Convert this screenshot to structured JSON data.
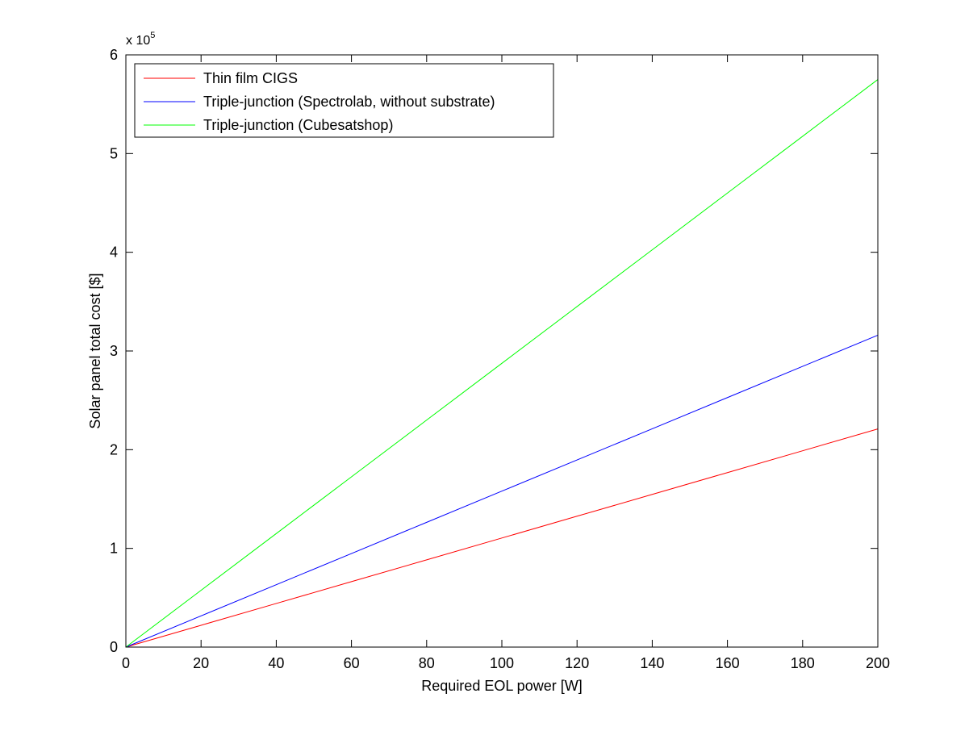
{
  "chart_data": {
    "type": "line",
    "title": "",
    "xlabel": "Required EOL power [W]",
    "ylabel": "Solar panel total cost [$]",
    "y_exponent_label": "x 10",
    "y_exponent_power": "5",
    "xlim": [
      0,
      200
    ],
    "ylim": [
      0,
      600000
    ],
    "x_ticks": [
      0,
      20,
      40,
      60,
      80,
      100,
      120,
      140,
      160,
      180,
      200
    ],
    "x_tick_labels": [
      "0",
      "20",
      "40",
      "60",
      "80",
      "100",
      "120",
      "140",
      "160",
      "180",
      "200"
    ],
    "y_ticks": [
      0,
      100000,
      200000,
      300000,
      400000,
      500000,
      600000
    ],
    "y_tick_labels": [
      "0",
      "1",
      "2",
      "3",
      "4",
      "5",
      "6"
    ],
    "grid": false,
    "legend_position": "top-left",
    "series": [
      {
        "name": "Thin film CIGS",
        "color": "#ff0000",
        "x": [
          0,
          20,
          40,
          60,
          80,
          100,
          120,
          140,
          160,
          180,
          200
        ],
        "values": [
          0,
          22100,
          44200,
          66300,
          88400,
          110500,
          132600,
          154700,
          176800,
          198900,
          221000
        ]
      },
      {
        "name": "Triple-junction (Spectrolab, without substrate)",
        "color": "#0000ff",
        "x": [
          0,
          20,
          40,
          60,
          80,
          100,
          120,
          140,
          160,
          180,
          200
        ],
        "values": [
          0,
          31600,
          63200,
          94800,
          126400,
          158000,
          189600,
          221200,
          252800,
          284400,
          316000
        ]
      },
      {
        "name": "Triple-junction (Cubesatshop)",
        "color": "#00ff00",
        "x": [
          0,
          20,
          40,
          60,
          80,
          100,
          120,
          140,
          160,
          180,
          200
        ],
        "values": [
          0,
          57500,
          115000,
          172500,
          230000,
          287500,
          345000,
          402500,
          460000,
          517500,
          575000
        ]
      }
    ]
  }
}
